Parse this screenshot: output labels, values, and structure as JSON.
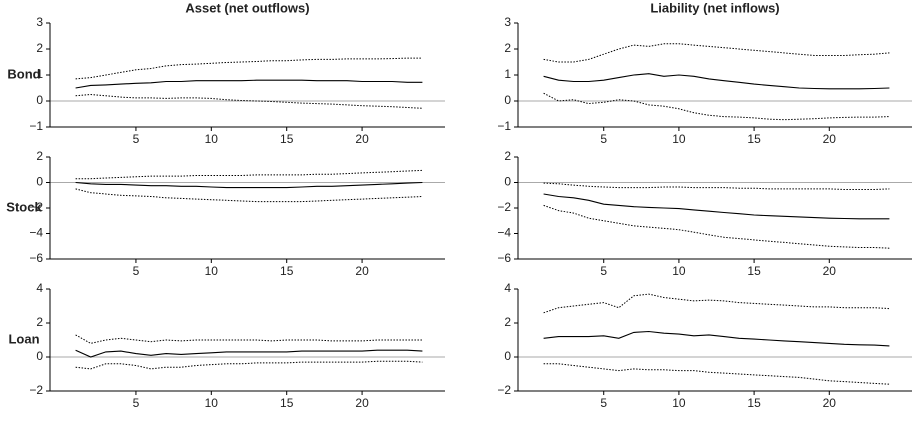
{
  "chart_data": [
    {
      "type": "line",
      "title": "Asset (net outflows)",
      "ylabel": "Bond",
      "x": [
        1,
        2,
        3,
        4,
        5,
        6,
        7,
        8,
        9,
        10,
        11,
        12,
        13,
        14,
        15,
        16,
        17,
        18,
        19,
        20,
        21,
        22,
        23,
        24
      ],
      "xlim": [
        -0.7,
        25.5
      ],
      "xticks": [
        5,
        10,
        15,
        20
      ],
      "ylim": [
        -1,
        3
      ],
      "yticks": [
        {
          "value": -1,
          "label": "−1"
        },
        0,
        1,
        2,
        3
      ],
      "zero_line": true,
      "series": [
        {
          "color": "#000000",
          "style": "dotted",
          "values": [
            0.85,
            0.9,
            1.0,
            1.1,
            1.2,
            1.25,
            1.35,
            1.4,
            1.42,
            1.45,
            1.48,
            1.5,
            1.52,
            1.55,
            1.55,
            1.58,
            1.6,
            1.6,
            1.62,
            1.62,
            1.62,
            1.63,
            1.65,
            1.65
          ]
        },
        {
          "color": "#000000",
          "style": "solid",
          "values": [
            0.5,
            0.6,
            0.62,
            0.65,
            0.68,
            0.7,
            0.75,
            0.75,
            0.78,
            0.78,
            0.78,
            0.78,
            0.8,
            0.8,
            0.8,
            0.8,
            0.78,
            0.78,
            0.78,
            0.75,
            0.75,
            0.75,
            0.72,
            0.72
          ]
        },
        {
          "color": "#000000",
          "style": "dotted",
          "values": [
            0.2,
            0.25,
            0.2,
            0.15,
            0.12,
            0.12,
            0.1,
            0.12,
            0.12,
            0.1,
            0.05,
            0.02,
            0,
            -0.02,
            -0.05,
            -0.08,
            -0.1,
            -0.12,
            -0.15,
            -0.18,
            -0.2,
            -0.22,
            -0.25,
            -0.28
          ]
        }
      ]
    },
    {
      "type": "line",
      "title": "Liability (net inflows)",
      "x": [
        1,
        2,
        3,
        4,
        5,
        6,
        7,
        8,
        9,
        10,
        11,
        12,
        13,
        14,
        15,
        16,
        17,
        18,
        19,
        20,
        21,
        22,
        23,
        24
      ],
      "xlim": [
        -0.7,
        25.5
      ],
      "xticks": [
        5,
        10,
        15,
        20
      ],
      "ylim": [
        -1,
        3
      ],
      "yticks": [
        {
          "value": -1,
          "label": "−1"
        },
        0,
        1,
        2,
        3
      ],
      "zero_line": true,
      "series": [
        {
          "color": "#000000",
          "style": "dotted",
          "values": [
            1.6,
            1.5,
            1.5,
            1.6,
            1.8,
            2.0,
            2.15,
            2.1,
            2.2,
            2.2,
            2.15,
            2.1,
            2.05,
            2.0,
            1.95,
            1.9,
            1.85,
            1.8,
            1.75,
            1.75,
            1.75,
            1.78,
            1.8,
            1.85
          ]
        },
        {
          "color": "#000000",
          "style": "solid",
          "values": [
            0.95,
            0.8,
            0.75,
            0.75,
            0.8,
            0.9,
            1.0,
            1.05,
            0.95,
            1.0,
            0.95,
            0.85,
            0.78,
            0.72,
            0.65,
            0.6,
            0.55,
            0.5,
            0.48,
            0.47,
            0.47,
            0.47,
            0.48,
            0.5
          ]
        },
        {
          "color": "#000000",
          "style": "dotted",
          "values": [
            0.3,
            0.0,
            0.05,
            -0.1,
            -0.05,
            0.05,
            0.0,
            -0.15,
            -0.2,
            -0.3,
            -0.45,
            -0.55,
            -0.6,
            -0.62,
            -0.65,
            -0.7,
            -0.72,
            -0.7,
            -0.68,
            -0.65,
            -0.63,
            -0.62,
            -0.62,
            -0.6
          ]
        }
      ]
    },
    {
      "type": "line",
      "ylabel": "Stock",
      "x": [
        1,
        2,
        3,
        4,
        5,
        6,
        7,
        8,
        9,
        10,
        11,
        12,
        13,
        14,
        15,
        16,
        17,
        18,
        19,
        20,
        21,
        22,
        23,
        24
      ],
      "xlim": [
        -0.7,
        25.5
      ],
      "xticks": [
        5,
        10,
        15,
        20
      ],
      "ylim": [
        -6,
        2
      ],
      "yticks": [
        {
          "value": -6,
          "label": "−6"
        },
        {
          "value": -4,
          "label": "−4"
        },
        {
          "value": -2,
          "label": "−2"
        },
        0,
        2
      ],
      "zero_line": true,
      "series": [
        {
          "color": "#000000",
          "style": "dotted",
          "values": [
            0.3,
            0.3,
            0.35,
            0.4,
            0.45,
            0.5,
            0.5,
            0.5,
            0.55,
            0.55,
            0.55,
            0.55,
            0.6,
            0.6,
            0.6,
            0.6,
            0.65,
            0.65,
            0.7,
            0.75,
            0.8,
            0.85,
            0.9,
            0.95
          ]
        },
        {
          "color": "#000000",
          "style": "solid",
          "values": [
            0,
            -0.1,
            -0.15,
            -0.15,
            -0.2,
            -0.25,
            -0.25,
            -0.3,
            -0.3,
            -0.35,
            -0.4,
            -0.4,
            -0.4,
            -0.4,
            -0.4,
            -0.35,
            -0.3,
            -0.3,
            -0.25,
            -0.2,
            -0.15,
            -0.1,
            -0.05,
            0
          ]
        },
        {
          "color": "#000000",
          "style": "dotted",
          "values": [
            -0.5,
            -0.8,
            -0.9,
            -1.0,
            -1.05,
            -1.1,
            -1.2,
            -1.25,
            -1.3,
            -1.35,
            -1.4,
            -1.45,
            -1.5,
            -1.5,
            -1.5,
            -1.5,
            -1.45,
            -1.4,
            -1.35,
            -1.3,
            -1.25,
            -1.2,
            -1.15,
            -1.1
          ]
        }
      ]
    },
    {
      "type": "line",
      "x": [
        1,
        2,
        3,
        4,
        5,
        6,
        7,
        8,
        9,
        10,
        11,
        12,
        13,
        14,
        15,
        16,
        17,
        18,
        19,
        20,
        21,
        22,
        23,
        24
      ],
      "xlim": [
        -0.7,
        25.5
      ],
      "xticks": [
        5,
        10,
        15,
        20
      ],
      "ylim": [
        -6,
        2
      ],
      "yticks": [
        {
          "value": -6,
          "label": "−6"
        },
        {
          "value": -4,
          "label": "−4"
        },
        {
          "value": -2,
          "label": "−2"
        },
        0,
        2
      ],
      "zero_line": true,
      "series": [
        {
          "color": "#000000",
          "style": "dotted",
          "values": [
            -0.05,
            -0.1,
            -0.2,
            -0.3,
            -0.35,
            -0.4,
            -0.4,
            -0.4,
            -0.35,
            -0.35,
            -0.4,
            -0.4,
            -0.4,
            -0.45,
            -0.45,
            -0.5,
            -0.5,
            -0.5,
            -0.5,
            -0.5,
            -0.55,
            -0.55,
            -0.55,
            -0.5
          ]
        },
        {
          "color": "#000000",
          "style": "solid",
          "values": [
            -0.9,
            -1.1,
            -1.2,
            -1.4,
            -1.7,
            -1.8,
            -1.9,
            -1.95,
            -2.0,
            -2.05,
            -2.15,
            -2.25,
            -2.35,
            -2.45,
            -2.55,
            -2.6,
            -2.65,
            -2.7,
            -2.75,
            -2.8,
            -2.82,
            -2.85,
            -2.85,
            -2.85
          ]
        },
        {
          "color": "#000000",
          "style": "dotted",
          "values": [
            -1.8,
            -2.2,
            -2.4,
            -2.8,
            -3.0,
            -3.2,
            -3.4,
            -3.5,
            -3.6,
            -3.7,
            -3.9,
            -4.1,
            -4.3,
            -4.4,
            -4.5,
            -4.6,
            -4.7,
            -4.8,
            -4.9,
            -5.0,
            -5.05,
            -5.1,
            -5.1,
            -5.15
          ]
        }
      ]
    },
    {
      "type": "line",
      "ylabel": "Loan",
      "x": [
        1,
        2,
        3,
        4,
        5,
        6,
        7,
        8,
        9,
        10,
        11,
        12,
        13,
        14,
        15,
        16,
        17,
        18,
        19,
        20,
        21,
        22,
        23,
        24
      ],
      "xlim": [
        -0.7,
        25.5
      ],
      "xticks": [
        5,
        10,
        15,
        20
      ],
      "ylim": [
        -2,
        4
      ],
      "yticks": [
        {
          "value": -2,
          "label": "−2"
        },
        0,
        2,
        4
      ],
      "zero_line": true,
      "series": [
        {
          "color": "#000000",
          "style": "dotted",
          "values": [
            1.3,
            0.8,
            1.0,
            1.1,
            1.0,
            0.9,
            1.0,
            0.95,
            1.0,
            1.0,
            1.0,
            1.0,
            1.0,
            0.95,
            1.0,
            1.0,
            1.0,
            0.95,
            0.95,
            0.95,
            1.0,
            1.0,
            1.0,
            1.0
          ]
        },
        {
          "color": "#000000",
          "style": "solid",
          "values": [
            0.4,
            0.0,
            0.3,
            0.35,
            0.2,
            0.1,
            0.2,
            0.15,
            0.2,
            0.25,
            0.3,
            0.3,
            0.3,
            0.3,
            0.3,
            0.35,
            0.35,
            0.35,
            0.35,
            0.35,
            0.4,
            0.4,
            0.4,
            0.35
          ]
        },
        {
          "color": "#000000",
          "style": "dotted",
          "values": [
            -0.6,
            -0.7,
            -0.4,
            -0.4,
            -0.5,
            -0.7,
            -0.6,
            -0.6,
            -0.5,
            -0.45,
            -0.4,
            -0.4,
            -0.35,
            -0.35,
            -0.35,
            -0.3,
            -0.3,
            -0.3,
            -0.3,
            -0.3,
            -0.25,
            -0.25,
            -0.25,
            -0.3
          ]
        }
      ]
    },
    {
      "type": "line",
      "x": [
        1,
        2,
        3,
        4,
        5,
        6,
        7,
        8,
        9,
        10,
        11,
        12,
        13,
        14,
        15,
        16,
        17,
        18,
        19,
        20,
        21,
        22,
        23,
        24
      ],
      "xlim": [
        -0.7,
        25.5
      ],
      "xticks": [
        5,
        10,
        15,
        20
      ],
      "ylim": [
        -2,
        4
      ],
      "yticks": [
        {
          "value": -2,
          "label": "−2"
        },
        0,
        2,
        4
      ],
      "zero_line": true,
      "series": [
        {
          "color": "#000000",
          "style": "dotted",
          "values": [
            2.6,
            2.9,
            3.0,
            3.1,
            3.2,
            2.9,
            3.6,
            3.7,
            3.5,
            3.4,
            3.3,
            3.35,
            3.3,
            3.2,
            3.15,
            3.1,
            3.05,
            3.0,
            2.95,
            2.95,
            2.9,
            2.9,
            2.9,
            2.85
          ]
        },
        {
          "color": "#000000",
          "style": "solid",
          "values": [
            1.1,
            1.2,
            1.2,
            1.2,
            1.25,
            1.1,
            1.45,
            1.5,
            1.4,
            1.35,
            1.25,
            1.3,
            1.2,
            1.1,
            1.05,
            1.0,
            0.95,
            0.9,
            0.85,
            0.8,
            0.75,
            0.72,
            0.7,
            0.65
          ]
        },
        {
          "color": "#000000",
          "style": "dotted",
          "values": [
            -0.4,
            -0.4,
            -0.5,
            -0.6,
            -0.7,
            -0.8,
            -0.7,
            -0.75,
            -0.75,
            -0.8,
            -0.8,
            -0.9,
            -0.95,
            -1.0,
            -1.05,
            -1.1,
            -1.15,
            -1.2,
            -1.3,
            -1.4,
            -1.45,
            -1.5,
            -1.55,
            -1.6
          ]
        }
      ]
    }
  ]
}
